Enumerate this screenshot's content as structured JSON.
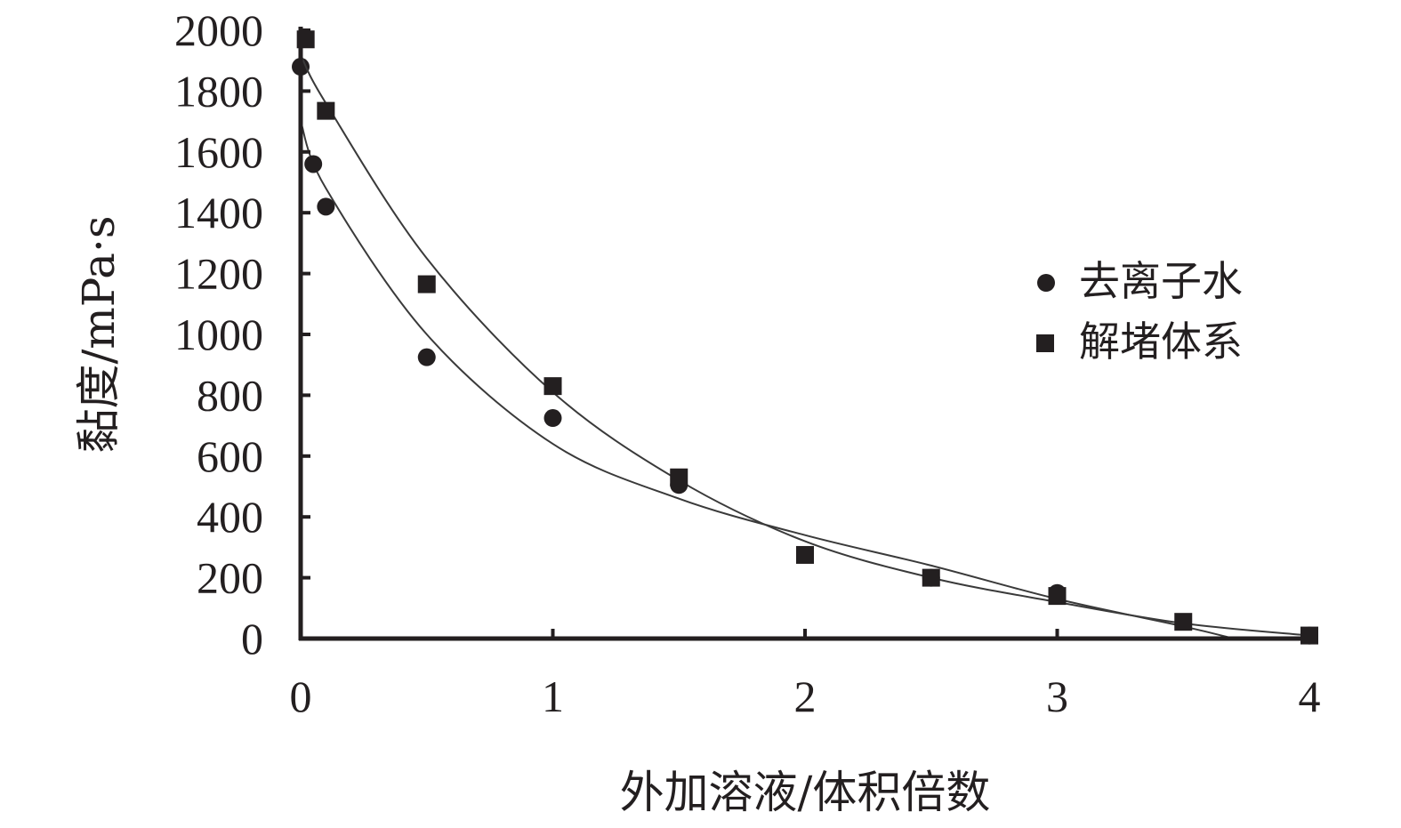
{
  "chart_data": {
    "type": "scatter",
    "xlabel": "外加溶液/体积倍数",
    "ylabel": "黏度/mPa·s",
    "xlim": [
      0,
      4
    ],
    "ylim": [
      0,
      2000
    ],
    "x_ticks": [
      "0",
      "1",
      "2",
      "3",
      "4"
    ],
    "y_ticks": [
      "0",
      "200",
      "400",
      "600",
      "800",
      "1000",
      "1200",
      "1400",
      "1600",
      "1800",
      "2000"
    ],
    "grid": false,
    "legend_position": "right",
    "series": [
      {
        "name": "去离子水",
        "marker": "circle",
        "color": "#231f20",
        "points": [
          {
            "x": 0,
            "y": 1880
          },
          {
            "x": 0.05,
            "y": 1560
          },
          {
            "x": 0.1,
            "y": 1420
          },
          {
            "x": 0.5,
            "y": 925
          },
          {
            "x": 1,
            "y": 725
          },
          {
            "x": 1.5,
            "y": 505
          },
          {
            "x": 2.5,
            "y": 200
          },
          {
            "x": 3,
            "y": 150
          },
          {
            "x": 4,
            "y": 10
          }
        ],
        "trendline": [
          {
            "x": 0,
            "y": 1700
          },
          {
            "x": 0.1,
            "y": 1480
          },
          {
            "x": 0.5,
            "y": 1000
          },
          {
            "x": 1,
            "y": 640
          },
          {
            "x": 1.5,
            "y": 460
          },
          {
            "x": 2,
            "y": 340
          },
          {
            "x": 2.5,
            "y": 240
          },
          {
            "x": 3,
            "y": 130
          },
          {
            "x": 3.5,
            "y": 40
          },
          {
            "x": 3.7,
            "y": 0
          }
        ]
      },
      {
        "name": "解堵体系",
        "marker": "square",
        "color": "#231f20",
        "points": [
          {
            "x": 0.02,
            "y": 1970
          },
          {
            "x": 0.1,
            "y": 1735
          },
          {
            "x": 0.5,
            "y": 1165
          },
          {
            "x": 1,
            "y": 830
          },
          {
            "x": 1.5,
            "y": 530
          },
          {
            "x": 2,
            "y": 275
          },
          {
            "x": 2.5,
            "y": 200
          },
          {
            "x": 3,
            "y": 140
          },
          {
            "x": 3.5,
            "y": 55
          },
          {
            "x": 4,
            "y": 10
          }
        ],
        "trendline": [
          {
            "x": 0,
            "y": 1920
          },
          {
            "x": 0.1,
            "y": 1760
          },
          {
            "x": 0.5,
            "y": 1250
          },
          {
            "x": 1,
            "y": 810
          },
          {
            "x": 1.5,
            "y": 520
          },
          {
            "x": 2,
            "y": 320
          },
          {
            "x": 2.5,
            "y": 200
          },
          {
            "x": 3,
            "y": 120
          },
          {
            "x": 3.5,
            "y": 50
          },
          {
            "x": 4,
            "y": 10
          }
        ]
      }
    ]
  }
}
